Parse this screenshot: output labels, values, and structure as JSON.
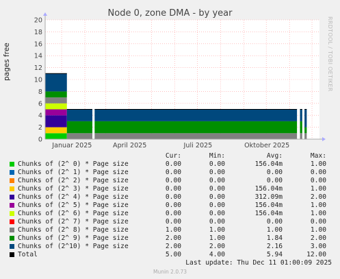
{
  "title": "Node 0, zone DMA - by year",
  "side_label": "RRDTOOL / TOBI OETIKER",
  "footer": "Munin 2.0.73",
  "last_update": "Last update: Thu Dec 11 01:00:09 2025",
  "colors": {
    "grid": "#ff9999",
    "axis": "#aaaaaa"
  },
  "chart_data": {
    "type": "area",
    "stacked": true,
    "title": "Node 0, zone DMA - by year",
    "ylabel": "pages free",
    "ylim": [
      0,
      20
    ],
    "yticks": [
      0,
      2,
      4,
      6,
      8,
      10,
      12,
      14,
      16,
      18,
      20
    ],
    "xlabels": [
      "Januar 2025",
      "April 2025",
      "Juli 2025",
      "Oktober 2025"
    ],
    "xlim": [
      "2024-12-10",
      "2025-12-11"
    ],
    "grid": true,
    "segments": [
      {
        "start": "2024-12-10",
        "end": "2025-01-08",
        "values": [
          1,
          0,
          0,
          1,
          2,
          1,
          1,
          0,
          1,
          1,
          3
        ]
      },
      {
        "start": "2025-01-08",
        "end": "2025-02-11",
        "values": [
          0,
          0,
          0,
          0,
          0,
          0,
          0,
          0,
          1,
          2,
          2
        ]
      },
      {
        "start": "2025-02-14",
        "end": "2025-11-11",
        "values": [
          0,
          0,
          0,
          0,
          0,
          0,
          0,
          0,
          1,
          2,
          2
        ]
      },
      {
        "start": "2025-11-15",
        "end": "2025-11-18",
        "values": [
          0,
          0,
          0,
          0,
          0,
          0,
          0,
          0,
          1,
          2,
          2
        ]
      },
      {
        "start": "2025-11-21",
        "end": "2025-11-24",
        "values": [
          0,
          0,
          0,
          0,
          0,
          0,
          0,
          0,
          1,
          1,
          3
        ]
      }
    ],
    "legend_headers": [
      "Cur:",
      "Min:",
      "Avg:",
      "Max:"
    ],
    "series": [
      {
        "name": "Chunks of (2^ 0) * Page size",
        "color": "#00cc00",
        "cur": "0.00",
        "min": "0.00",
        "avg": "156.04m",
        "max": "1.00"
      },
      {
        "name": "Chunks of (2^ 1) * Page size",
        "color": "#0066b3",
        "cur": "0.00",
        "min": "0.00",
        "avg": "0.00",
        "max": "0.00"
      },
      {
        "name": "Chunks of (2^ 2) * Page size",
        "color": "#ff8000",
        "cur": "0.00",
        "min": "0.00",
        "avg": "0.00",
        "max": "0.00"
      },
      {
        "name": "Chunks of (2^ 3) * Page size",
        "color": "#ffcc00",
        "cur": "0.00",
        "min": "0.00",
        "avg": "156.04m",
        "max": "1.00"
      },
      {
        "name": "Chunks of (2^ 4) * Page size",
        "color": "#330099",
        "cur": "0.00",
        "min": "0.00",
        "avg": "312.09m",
        "max": "2.00"
      },
      {
        "name": "Chunks of (2^ 5) * Page size",
        "color": "#990099",
        "cur": "0.00",
        "min": "0.00",
        "avg": "156.04m",
        "max": "1.00"
      },
      {
        "name": "Chunks of (2^ 6) * Page size",
        "color": "#ccff00",
        "cur": "0.00",
        "min": "0.00",
        "avg": "156.04m",
        "max": "1.00"
      },
      {
        "name": "Chunks of (2^ 7) * Page size",
        "color": "#ff0000",
        "cur": "0.00",
        "min": "0.00",
        "avg": "0.00",
        "max": "0.00"
      },
      {
        "name": "Chunks of (2^ 8) * Page size",
        "color": "#808080",
        "cur": "1.00",
        "min": "1.00",
        "avg": "1.00",
        "max": "1.00"
      },
      {
        "name": "Chunks of (2^ 9) * Page size",
        "color": "#008f00",
        "cur": "2.00",
        "min": "1.00",
        "avg": "1.84",
        "max": "2.00"
      },
      {
        "name": "Chunks of (2^10) * Page size",
        "color": "#00487d",
        "cur": "2.00",
        "min": "2.00",
        "avg": "2.16",
        "max": "3.00"
      },
      {
        "name": "Total",
        "color": "#000000",
        "cur": "5.00",
        "min": "4.00",
        "avg": "5.94",
        "max": "12.00"
      }
    ]
  }
}
